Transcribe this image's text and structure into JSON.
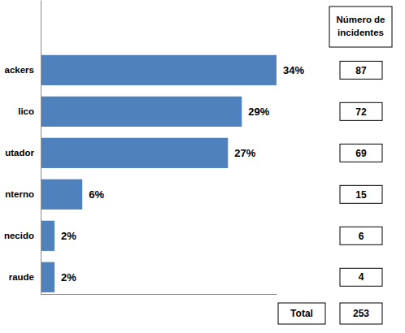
{
  "chart_data": {
    "type": "bar",
    "orientation": "horizontal",
    "categories": [
      "ackers",
      "lico",
      "utador",
      "nterno",
      "necido",
      "raude"
    ],
    "values": [
      34,
      29,
      27,
      6,
      2,
      2
    ],
    "value_labels": [
      "34%",
      "29%",
      "27%",
      "6%",
      "2%",
      "2%"
    ],
    "color": "#4f81bd",
    "xlim": [
      0,
      34
    ],
    "data_labels": true,
    "tick_labels": "y",
    "grid": false
  },
  "table": {
    "header": [
      "Número de",
      "incidentes"
    ],
    "values": [
      87,
      72,
      69,
      15,
      6,
      4
    ],
    "total_label": "Total",
    "total": 253
  }
}
